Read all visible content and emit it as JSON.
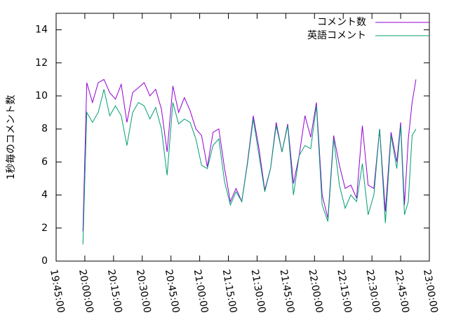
{
  "chart_data": {
    "type": "line",
    "ylabel": "1秒毎のコメント数",
    "x": [
      "19:59:00",
      "20:01:00",
      "20:04:00",
      "20:07:00",
      "20:10:00",
      "20:13:00",
      "20:16:00",
      "20:19:00",
      "20:22:00",
      "20:25:00",
      "20:28:00",
      "20:31:00",
      "20:34:00",
      "20:37:00",
      "20:40:00",
      "20:43:00",
      "20:46:00",
      "20:49:00",
      "20:52:00",
      "20:55:00",
      "20:58:00",
      "21:01:00",
      "21:04:00",
      "21:07:00",
      "21:10:00",
      "21:13:00",
      "21:16:00",
      "21:19:00",
      "21:22:00",
      "21:25:00",
      "21:28:00",
      "21:31:00",
      "21:34:00",
      "21:37:00",
      "21:40:00",
      "21:43:00",
      "21:46:00",
      "21:49:00",
      "21:52:00",
      "21:55:00",
      "21:58:00",
      "22:01:00",
      "22:04:00",
      "22:07:00",
      "22:10:00",
      "22:13:00",
      "22:16:00",
      "22:19:00",
      "22:22:00",
      "22:25:00",
      "22:28:00",
      "22:31:00",
      "22:34:00",
      "22:37:00",
      "22:40:00",
      "22:43:00",
      "22:45:00",
      "22:47:00",
      "22:49:00",
      "22:51:00",
      "22:53:00"
    ],
    "series": [
      {
        "name": "コメント数",
        "color": "#9400d3",
        "values": [
          1.8,
          10.8,
          9.6,
          10.8,
          11.0,
          10.2,
          9.8,
          10.7,
          8.4,
          10.2,
          10.5,
          10.8,
          10.0,
          10.4,
          9.2,
          6.6,
          10.6,
          9.0,
          9.9,
          9.1,
          8.0,
          7.6,
          5.7,
          7.8,
          8.0,
          5.6,
          3.6,
          4.4,
          3.6,
          6.0,
          8.8,
          6.8,
          4.3,
          5.6,
          8.4,
          6.6,
          8.3,
          4.7,
          6.4,
          8.8,
          7.5,
          9.6,
          4.0,
          2.6,
          7.6,
          5.8,
          4.4,
          4.6,
          3.8,
          8.2,
          4.6,
          4.4,
          8.0,
          3.0,
          7.8,
          6.0,
          8.4,
          3.4,
          7.4,
          9.6,
          11.0
        ]
      },
      {
        "name": "英語コメント",
        "color": "#009e73",
        "values": [
          1.0,
          9.0,
          8.4,
          9.0,
          10.4,
          8.8,
          9.4,
          8.8,
          7.0,
          9.0,
          9.6,
          9.4,
          8.6,
          9.3,
          8.0,
          5.2,
          9.6,
          8.3,
          8.6,
          8.4,
          7.4,
          5.8,
          5.6,
          7.0,
          7.4,
          4.8,
          3.4,
          4.2,
          3.6,
          5.9,
          8.6,
          6.4,
          4.2,
          5.6,
          8.2,
          6.6,
          8.2,
          4.0,
          6.4,
          7.0,
          6.8,
          9.4,
          3.4,
          2.4,
          7.4,
          4.6,
          3.2,
          4.0,
          3.6,
          5.9,
          2.8,
          4.0,
          8.0,
          2.3,
          7.6,
          5.6,
          8.2,
          2.8,
          3.6,
          7.6,
          8.0
        ]
      }
    ],
    "xlim": [
      "19:45:00",
      "23:00:00"
    ],
    "xticks": [
      "19:45:00",
      "20:00:00",
      "20:15:00",
      "20:30:00",
      "20:45:00",
      "21:00:00",
      "21:15:00",
      "21:30:00",
      "21:45:00",
      "22:00:00",
      "22:15:00",
      "22:30:00",
      "22:45:00",
      "23:00:00"
    ],
    "ylim": [
      0,
      15
    ],
    "yticks": [
      0,
      2,
      4,
      6,
      8,
      10,
      12,
      14
    ],
    "legend": "top-right"
  }
}
